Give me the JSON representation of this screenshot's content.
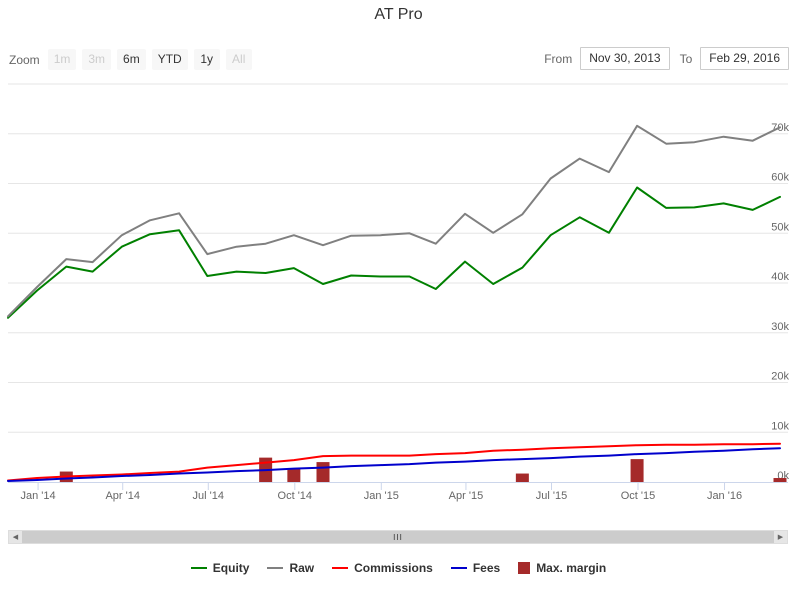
{
  "title": "AT Pro",
  "range_selector": {
    "zoom_label": "Zoom",
    "buttons": [
      {
        "label": "1m",
        "enabled": false
      },
      {
        "label": "3m",
        "enabled": false
      },
      {
        "label": "6m",
        "enabled": true
      },
      {
        "label": "YTD",
        "enabled": true
      },
      {
        "label": "1y",
        "enabled": true
      },
      {
        "label": "All",
        "enabled": false
      }
    ],
    "from_label": "From",
    "from_value": "Nov 30, 2013",
    "to_label": "To",
    "to_value": "Feb 29, 2016"
  },
  "scrollbar": {
    "thumb_glyph": "III"
  },
  "legend": [
    {
      "name": "Equity",
      "color": "#008000",
      "kind": "line"
    },
    {
      "name": "Raw",
      "color": "#808080",
      "kind": "line"
    },
    {
      "name": "Commissions",
      "color": "#ff0000",
      "kind": "line"
    },
    {
      "name": "Fees",
      "color": "#0000cc",
      "kind": "line"
    },
    {
      "name": "Max. margin",
      "color": "#a52a2a",
      "kind": "bar"
    }
  ],
  "chart_data": {
    "type": "line",
    "title": "AT Pro",
    "x_axis": {
      "type": "datetime",
      "range": [
        "2013-11-30",
        "2016-02-29"
      ],
      "ticks": [
        {
          "date": "2014-01-01",
          "label": "Jan '14"
        },
        {
          "date": "2014-04-01",
          "label": "Apr '14"
        },
        {
          "date": "2014-07-01",
          "label": "Jul '14"
        },
        {
          "date": "2014-10-01",
          "label": "Oct '14"
        },
        {
          "date": "2015-01-01",
          "label": "Jan '15"
        },
        {
          "date": "2015-04-01",
          "label": "Apr '15"
        },
        {
          "date": "2015-07-01",
          "label": "Jul '15"
        },
        {
          "date": "2015-10-01",
          "label": "Oct '15"
        },
        {
          "date": "2016-01-01",
          "label": "Jan '16"
        }
      ]
    },
    "y_axis": {
      "position": "right",
      "range": [
        0,
        80000
      ],
      "ticks": [
        0,
        10000,
        20000,
        30000,
        40000,
        50000,
        60000,
        70000
      ],
      "tick_labels": [
        "0k",
        "10k",
        "20k",
        "30k",
        "40k",
        "50k",
        "60k",
        "70k"
      ],
      "grid": true
    },
    "legend_position": "bottom",
    "dates": [
      "2013-11-30",
      "2013-12-31",
      "2014-01-31",
      "2014-02-28",
      "2014-03-31",
      "2014-04-30",
      "2014-05-31",
      "2014-06-30",
      "2014-07-31",
      "2014-08-31",
      "2014-09-30",
      "2014-10-31",
      "2014-11-30",
      "2014-12-31",
      "2015-01-31",
      "2015-02-28",
      "2015-03-31",
      "2015-04-30",
      "2015-05-31",
      "2015-06-30",
      "2015-07-31",
      "2015-08-31",
      "2015-09-30",
      "2015-10-31",
      "2015-11-30",
      "2015-12-31",
      "2016-01-31",
      "2016-02-29"
    ],
    "series": [
      {
        "name": "Equity",
        "color": "#008000",
        "type": "line",
        "values": [
          33000,
          38500,
          43300,
          42300,
          47300,
          49800,
          50600,
          41400,
          42300,
          42000,
          43000,
          39800,
          41500,
          41300,
          41300,
          38800,
          44300,
          39800,
          43100,
          49600,
          53200,
          50100,
          59200,
          55100,
          55200,
          56000,
          54700,
          57300
        ]
      },
      {
        "name": "Raw",
        "color": "#808080",
        "type": "line",
        "values": [
          33300,
          39200,
          44800,
          44200,
          49600,
          52600,
          54000,
          45800,
          47300,
          47900,
          49600,
          47600,
          49500,
          49600,
          50000,
          47900,
          53900,
          50100,
          53800,
          61000,
          65000,
          62300,
          71600,
          68000,
          68300,
          69400,
          68600,
          71300
        ]
      },
      {
        "name": "Commissions",
        "color": "#ff0000",
        "type": "line",
        "values": [
          300,
          800,
          1100,
          1300,
          1500,
          1800,
          2100,
          2900,
          3400,
          3900,
          4400,
          5200,
          5300,
          5300,
          5300,
          5600,
          5800,
          6300,
          6500,
          6800,
          7000,
          7200,
          7400,
          7500,
          7500,
          7600,
          7600,
          7700
        ]
      },
      {
        "name": "Fees",
        "color": "#0000cc",
        "type": "line",
        "values": [
          200,
          400,
          700,
          900,
          1200,
          1400,
          1700,
          1900,
          2200,
          2400,
          2700,
          2900,
          3200,
          3400,
          3600,
          3900,
          4100,
          4400,
          4600,
          4800,
          5100,
          5300,
          5600,
          5800,
          6100,
          6300,
          6600,
          6800
        ]
      }
    ],
    "bars": {
      "name": "Max. margin",
      "color": "#a52a2a",
      "points": [
        {
          "date": "2014-01-31",
          "value": 2100
        },
        {
          "date": "2014-08-31",
          "value": 4900
        },
        {
          "date": "2014-09-30",
          "value": 2800
        },
        {
          "date": "2014-10-31",
          "value": 4000
        },
        {
          "date": "2015-05-31",
          "value": 1700
        },
        {
          "date": "2015-09-30",
          "value": 4600
        },
        {
          "date": "2016-02-29",
          "value": 800
        }
      ]
    }
  }
}
